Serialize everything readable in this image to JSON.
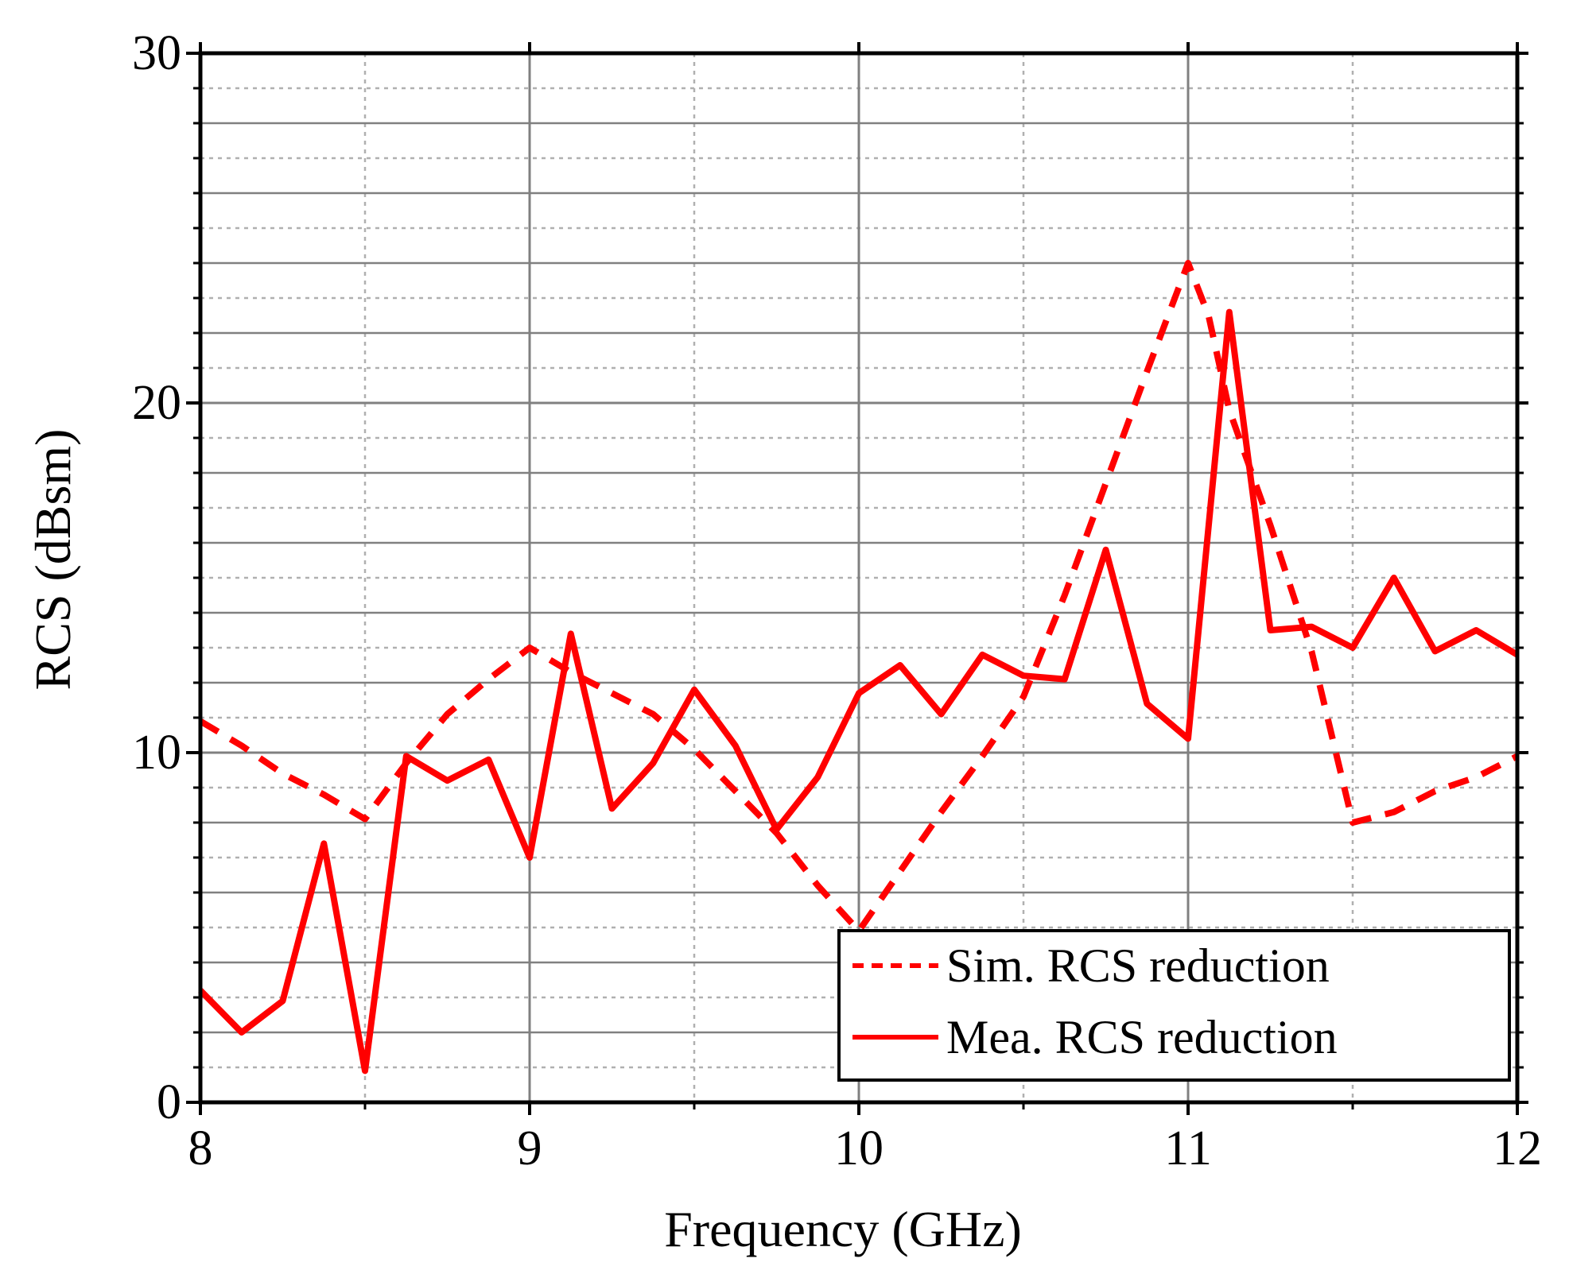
{
  "chart_data": {
    "type": "line",
    "title": "",
    "xlabel": "Frequency (GHz)",
    "ylabel": "RCS (dBsm)",
    "xlim": [
      8,
      12
    ],
    "ylim": [
      0,
      30
    ],
    "x_ticks": [
      8,
      9,
      10,
      11,
      12
    ],
    "y_ticks": [
      0,
      10,
      20,
      30
    ],
    "x_minor_step": 0.5,
    "y_minor_step": 1,
    "grid": true,
    "legend_position": "bottom-right",
    "series": [
      {
        "name": "Sim. RCS reduction",
        "style": "dashed",
        "color": "#ff0000",
        "x": [
          8.0,
          8.125,
          8.25,
          8.375,
          8.5,
          8.625,
          8.75,
          8.875,
          9.0,
          9.125,
          9.25,
          9.375,
          9.5,
          9.625,
          9.75,
          9.875,
          10.0,
          10.125,
          10.25,
          10.375,
          10.5,
          10.625,
          10.75,
          10.875,
          11.0,
          11.062,
          11.125,
          11.25,
          11.375,
          11.5,
          11.625,
          11.75,
          11.875,
          12.0
        ],
        "y": [
          10.9,
          10.2,
          9.4,
          8.8,
          8.1,
          9.7,
          11.1,
          12.1,
          13.0,
          12.3,
          11.7,
          11.1,
          10.1,
          8.9,
          7.7,
          6.2,
          4.9,
          6.6,
          8.3,
          9.9,
          11.6,
          14.5,
          17.7,
          20.9,
          24.0,
          22.5,
          19.8,
          16.5,
          12.9,
          8.0,
          8.3,
          8.9,
          9.3,
          9.9
        ]
      },
      {
        "name": "Mea. RCS reduction",
        "style": "solid",
        "color": "#ff0000",
        "x": [
          8.0,
          8.125,
          8.25,
          8.375,
          8.5,
          8.625,
          8.75,
          8.875,
          9.0,
          9.125,
          9.25,
          9.375,
          9.5,
          9.625,
          9.75,
          9.875,
          10.0,
          10.125,
          10.25,
          10.375,
          10.5,
          10.625,
          10.75,
          10.875,
          11.0,
          11.125,
          11.25,
          11.375,
          11.5,
          11.625,
          11.75,
          11.875,
          12.0
        ],
        "y": [
          3.2,
          2.0,
          2.9,
          7.4,
          0.9,
          9.9,
          9.2,
          9.8,
          7.0,
          13.4,
          8.4,
          9.7,
          11.8,
          10.2,
          7.8,
          9.3,
          11.7,
          12.5,
          11.1,
          12.8,
          12.2,
          12.1,
          15.8,
          11.4,
          10.4,
          22.6,
          13.5,
          13.6,
          13.0,
          15.0,
          12.9,
          13.5,
          12.8
        ]
      }
    ]
  }
}
